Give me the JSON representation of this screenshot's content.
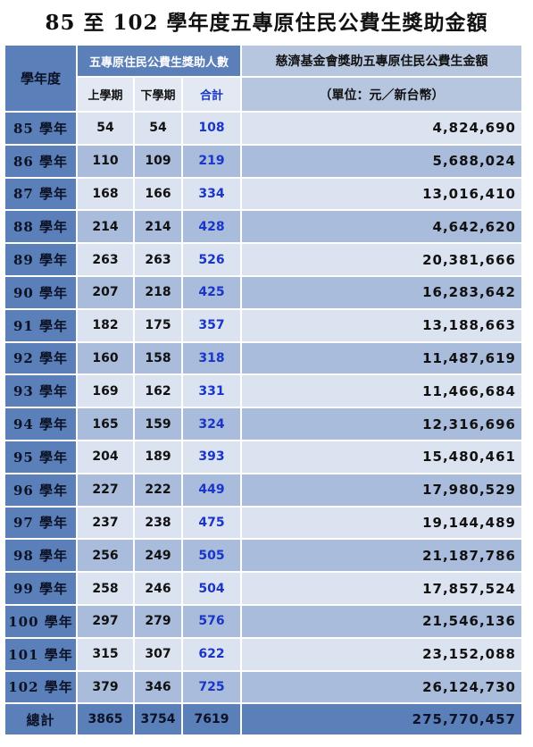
{
  "title": "85 至 102 學年度五專原住民公費生獎助金額",
  "header": {
    "year_col": "學年度",
    "count_group": "五專原住民公費生獎助人數",
    "first_term": "上學期",
    "second_term": "下學期",
    "subtotal": "合計",
    "amount_line1": "慈濟基金會獎助五專原住民公費生金額",
    "amount_line2": "（單位：元／新台幣）"
  },
  "rows": [
    {
      "year": "85 學年",
      "first": "54",
      "second": "54",
      "total": "108",
      "amount": "4,824,690"
    },
    {
      "year": "86 學年",
      "first": "110",
      "second": "109",
      "total": "219",
      "amount": "5,688,024"
    },
    {
      "year": "87 學年",
      "first": "168",
      "second": "166",
      "total": "334",
      "amount": "13,016,410"
    },
    {
      "year": "88 學年",
      "first": "214",
      "second": "214",
      "total": "428",
      "amount": "4,642,620"
    },
    {
      "year": "89 學年",
      "first": "263",
      "second": "263",
      "total": "526",
      "amount": "20,381,666"
    },
    {
      "year": "90 學年",
      "first": "207",
      "second": "218",
      "total": "425",
      "amount": "16,283,642"
    },
    {
      "year": "91 學年",
      "first": "182",
      "second": "175",
      "total": "357",
      "amount": "13,188,663"
    },
    {
      "year": "92 學年",
      "first": "160",
      "second": "158",
      "total": "318",
      "amount": "11,487,619"
    },
    {
      "year": "93 學年",
      "first": "169",
      "second": "162",
      "total": "331",
      "amount": "11,466,684"
    },
    {
      "year": "94 學年",
      "first": "165",
      "second": "159",
      "total": "324",
      "amount": "12,316,696"
    },
    {
      "year": "95 學年",
      "first": "204",
      "second": "189",
      "total": "393",
      "amount": "15,480,461"
    },
    {
      "year": "96 學年",
      "first": "227",
      "second": "222",
      "total": "449",
      "amount": "17,980,529"
    },
    {
      "year": "97 學年",
      "first": "237",
      "second": "238",
      "total": "475",
      "amount": "19,144,489"
    },
    {
      "year": "98 學年",
      "first": "256",
      "second": "249",
      "total": "505",
      "amount": "21,187,786"
    },
    {
      "year": "99 學年",
      "first": "258",
      "second": "246",
      "total": "504",
      "amount": "17,857,524"
    },
    {
      "year": "100 學年",
      "first": "297",
      "second": "279",
      "total": "576",
      "amount": "21,546,136"
    },
    {
      "year": "101 學年",
      "first": "315",
      "second": "307",
      "total": "622",
      "amount": "23,152,088"
    },
    {
      "year": "102 學年",
      "first": "379",
      "second": "346",
      "total": "725",
      "amount": "26,124,730"
    }
  ],
  "total_row": {
    "label": "總計",
    "first": "3865",
    "second": "3754",
    "total": "7619",
    "amount": "275,770,457"
  },
  "colors": {
    "header_blue": "#5b7fb8",
    "row_light": "#dbe3f0",
    "row_dark": "#a9bcdb",
    "subtotal_text": "#1a35c9"
  }
}
